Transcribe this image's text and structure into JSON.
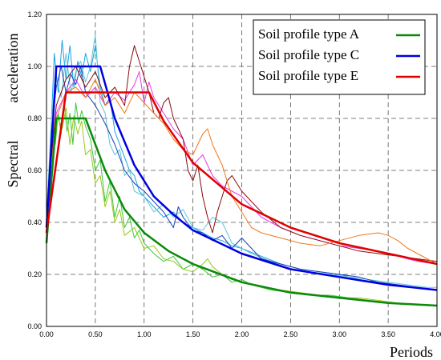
{
  "chart_data": {
    "type": "line",
    "title": "",
    "xlabel": "Periods",
    "ylabel_lines": [
      "Spectral",
      "acceleration"
    ],
    "xlim": [
      0,
      4
    ],
    "ylim": [
      0,
      1.2
    ],
    "grid": true,
    "legend_position": "top-right",
    "x_ticks": [
      "0.00",
      "0.50",
      "1.00",
      "1.50",
      "2.00",
      "2.50",
      "3.00",
      "3.50",
      "4.00"
    ],
    "y_ticks": [
      "0.00",
      "0.20",
      "0.40",
      "0.60",
      "0.80",
      "1.00",
      "1.20"
    ],
    "series": [
      {
        "name": "Soil profile type A",
        "color": "#0a8a0a",
        "width": 2.5,
        "x": [
          0,
          0.1,
          0.4,
          0.6,
          0.8,
          1.0,
          1.25,
          1.5,
          2.0,
          2.5,
          3.0,
          3.5,
          4.0
        ],
        "y": [
          0.32,
          0.8,
          0.8,
          0.6,
          0.45,
          0.36,
          0.29,
          0.24,
          0.17,
          0.13,
          0.11,
          0.09,
          0.08
        ]
      },
      {
        "name": "Soil profile type C",
        "color": "#0000e0",
        "width": 2.5,
        "x": [
          0,
          0.1,
          0.55,
          0.7,
          0.9,
          1.1,
          1.3,
          1.5,
          2.0,
          2.5,
          3.0,
          3.5,
          4.0
        ],
        "y": [
          0.38,
          1.0,
          1.0,
          0.8,
          0.62,
          0.5,
          0.43,
          0.37,
          0.28,
          0.22,
          0.19,
          0.16,
          0.14
        ]
      },
      {
        "name": "Soil profile type E",
        "color": "#e00000",
        "width": 2.5,
        "x": [
          0,
          0.2,
          1.05,
          1.2,
          1.5,
          2.0,
          2.5,
          3.0,
          3.5,
          4.0
        ],
        "y": [
          0.36,
          0.9,
          0.9,
          0.79,
          0.63,
          0.47,
          0.38,
          0.32,
          0.28,
          0.24
        ]
      }
    ],
    "records": [
      {
        "color": "#3cc83c",
        "x": [
          0,
          0.03,
          0.06,
          0.09,
          0.12,
          0.15,
          0.18,
          0.21,
          0.24,
          0.27,
          0.3,
          0.33,
          0.36,
          0.4,
          0.45,
          0.5,
          0.55,
          0.6,
          0.65,
          0.7,
          0.75,
          0.8,
          0.85,
          0.9,
          0.95,
          1.0,
          1.1,
          1.2,
          1.3,
          1.4,
          1.5,
          1.6,
          1.7,
          1.8,
          1.9,
          2.0,
          2.1,
          2.2,
          2.3,
          2.5,
          2.7,
          2.9,
          3.1,
          3.3,
          3.5,
          3.7,
          3.9,
          4.0
        ],
        "y": [
          0.35,
          0.55,
          0.78,
          0.7,
          0.82,
          0.74,
          0.87,
          0.75,
          0.82,
          0.7,
          0.86,
          0.78,
          0.83,
          0.77,
          0.72,
          0.6,
          0.64,
          0.48,
          0.56,
          0.42,
          0.5,
          0.38,
          0.42,
          0.34,
          0.37,
          0.32,
          0.28,
          0.25,
          0.27,
          0.22,
          0.24,
          0.22,
          0.19,
          0.2,
          0.17,
          0.18,
          0.16,
          0.15,
          0.14,
          0.13,
          0.12,
          0.12,
          0.11,
          0.1,
          0.09,
          0.085,
          0.08,
          0.08
        ]
      },
      {
        "color": "#98c818",
        "x": [
          0,
          0.04,
          0.08,
          0.12,
          0.16,
          0.2,
          0.24,
          0.28,
          0.32,
          0.36,
          0.4,
          0.45,
          0.5,
          0.55,
          0.6,
          0.65,
          0.7,
          0.75,
          0.8,
          0.9,
          1.0,
          1.1,
          1.2,
          1.3,
          1.4,
          1.5,
          1.6,
          1.65,
          1.7,
          1.8,
          1.9,
          2.0,
          2.2,
          2.4,
          2.6,
          2.8,
          3.0,
          3.2,
          3.4,
          3.6,
          3.8,
          4.0
        ],
        "y": [
          0.38,
          0.62,
          0.72,
          0.8,
          0.76,
          0.84,
          0.7,
          0.81,
          0.74,
          0.79,
          0.66,
          0.68,
          0.55,
          0.58,
          0.46,
          0.52,
          0.4,
          0.45,
          0.35,
          0.38,
          0.3,
          0.31,
          0.26,
          0.25,
          0.22,
          0.21,
          0.24,
          0.26,
          0.23,
          0.2,
          0.18,
          0.17,
          0.15,
          0.14,
          0.13,
          0.12,
          0.11,
          0.11,
          0.1,
          0.09,
          0.085,
          0.08
        ]
      },
      {
        "color": "#18a0e8",
        "x": [
          0,
          0.04,
          0.08,
          0.12,
          0.16,
          0.2,
          0.24,
          0.28,
          0.32,
          0.36,
          0.4,
          0.45,
          0.5,
          0.55,
          0.6,
          0.65,
          0.7,
          0.75,
          0.8,
          0.85,
          0.9,
          0.95,
          1.0,
          1.1,
          1.2,
          1.3,
          1.4,
          1.5,
          1.6,
          1.7,
          1.8,
          1.9,
          2.0,
          2.2,
          2.4,
          2.6,
          2.8,
          3.0,
          3.2,
          3.4,
          3.6,
          3.8,
          4.0
        ],
        "y": [
          0.4,
          0.7,
          1.05,
          0.9,
          1.1,
          0.95,
          1.08,
          0.92,
          1.02,
          0.96,
          1.05,
          0.98,
          1.08,
          0.92,
          0.85,
          0.88,
          0.75,
          0.7,
          0.65,
          0.6,
          0.58,
          0.52,
          0.5,
          0.46,
          0.42,
          0.44,
          0.4,
          0.38,
          0.36,
          0.34,
          0.33,
          0.31,
          0.3,
          0.27,
          0.24,
          0.22,
          0.21,
          0.2,
          0.18,
          0.17,
          0.16,
          0.15,
          0.14
        ]
      },
      {
        "color": "#60c8d8",
        "x": [
          0,
          0.05,
          0.1,
          0.15,
          0.2,
          0.25,
          0.3,
          0.35,
          0.4,
          0.45,
          0.5,
          0.55,
          0.6,
          0.65,
          0.7,
          0.75,
          0.8,
          0.85,
          0.9,
          1.0,
          1.1,
          1.2,
          1.3,
          1.4,
          1.5,
          1.6,
          1.7,
          1.8,
          1.9,
          2.0,
          2.1,
          2.3,
          2.5,
          2.7,
          2.9,
          3.1,
          3.3,
          3.5,
          3.7,
          3.9,
          4.0
        ],
        "y": [
          0.42,
          0.8,
          0.95,
          0.88,
          1.05,
          0.9,
          0.98,
          1.02,
          0.94,
          1.0,
          1.12,
          0.86,
          0.82,
          0.7,
          0.66,
          0.68,
          0.58,
          0.6,
          0.52,
          0.5,
          0.44,
          0.47,
          0.42,
          0.45,
          0.38,
          0.37,
          0.42,
          0.4,
          0.32,
          0.3,
          0.28,
          0.25,
          0.22,
          0.21,
          0.2,
          0.19,
          0.18,
          0.17,
          0.16,
          0.15,
          0.15
        ]
      },
      {
        "color": "#1840b8",
        "x": [
          0,
          0.05,
          0.1,
          0.15,
          0.2,
          0.25,
          0.3,
          0.35,
          0.4,
          0.5,
          0.6,
          0.7,
          0.8,
          0.9,
          1.0,
          1.1,
          1.2,
          1.3,
          1.35,
          1.4,
          1.5,
          1.6,
          1.7,
          1.8,
          1.9,
          2.0,
          2.1,
          2.2,
          2.4,
          2.6,
          2.8,
          3.0,
          3.2,
          3.4,
          3.6,
          3.8,
          4.0
        ],
        "y": [
          0.4,
          0.75,
          0.92,
          1.0,
          0.9,
          0.97,
          0.93,
          1.0,
          0.9,
          0.85,
          0.78,
          0.7,
          0.6,
          0.55,
          0.52,
          0.48,
          0.44,
          0.38,
          0.46,
          0.42,
          0.37,
          0.36,
          0.33,
          0.35,
          0.3,
          0.34,
          0.3,
          0.26,
          0.24,
          0.22,
          0.21,
          0.2,
          0.19,
          0.17,
          0.16,
          0.15,
          0.14
        ]
      },
      {
        "color": "#e838e8",
        "x": [
          0,
          0.05,
          0.1,
          0.2,
          0.3,
          0.4,
          0.5,
          0.6,
          0.7,
          0.8,
          0.9,
          0.95,
          1.0,
          1.05,
          1.1,
          1.2,
          1.3,
          1.4,
          1.5,
          1.6,
          1.7,
          1.8,
          1.9,
          2.0,
          2.1,
          2.2,
          2.4,
          2.6,
          2.8,
          3.0,
          3.2,
          3.4,
          3.6,
          3.8,
          4.0
        ],
        "y": [
          0.38,
          0.6,
          0.82,
          0.9,
          0.95,
          0.88,
          0.92,
          0.85,
          0.9,
          0.87,
          0.93,
          0.98,
          0.86,
          0.94,
          0.88,
          0.82,
          0.76,
          0.72,
          0.62,
          0.66,
          0.58,
          0.54,
          0.52,
          0.5,
          0.46,
          0.42,
          0.38,
          0.35,
          0.33,
          0.31,
          0.3,
          0.29,
          0.27,
          0.25,
          0.24
        ]
      },
      {
        "color": "#8b0a0a",
        "x": [
          0,
          0.05,
          0.1,
          0.2,
          0.3,
          0.4,
          0.5,
          0.6,
          0.7,
          0.8,
          0.85,
          0.9,
          0.95,
          1.0,
          1.05,
          1.1,
          1.15,
          1.2,
          1.25,
          1.3,
          1.35,
          1.4,
          1.45,
          1.5,
          1.55,
          1.6,
          1.65,
          1.7,
          1.75,
          1.8,
          1.85,
          1.9,
          2.0,
          2.2,
          2.4,
          2.6,
          2.8,
          3.0,
          3.2,
          3.4,
          3.6,
          3.8,
          4.0
        ],
        "y": [
          0.4,
          0.65,
          0.85,
          0.95,
          1.0,
          0.92,
          0.98,
          0.88,
          0.92,
          0.85,
          1.0,
          1.08,
          1.02,
          0.96,
          0.9,
          0.82,
          0.8,
          0.86,
          0.88,
          0.8,
          0.76,
          0.72,
          0.6,
          0.56,
          0.62,
          0.5,
          0.42,
          0.36,
          0.44,
          0.5,
          0.56,
          0.58,
          0.52,
          0.44,
          0.38,
          0.35,
          0.33,
          0.31,
          0.29,
          0.28,
          0.27,
          0.26,
          0.25
        ]
      },
      {
        "color": "#f07818",
        "x": [
          0,
          0.05,
          0.1,
          0.2,
          0.3,
          0.4,
          0.5,
          0.6,
          0.7,
          0.8,
          0.9,
          1.0,
          1.1,
          1.2,
          1.3,
          1.4,
          1.5,
          1.6,
          1.65,
          1.7,
          1.8,
          1.9,
          2.0,
          2.1,
          2.2,
          2.4,
          2.6,
          2.8,
          3.0,
          3.2,
          3.4,
          3.5,
          3.6,
          3.7,
          3.8,
          3.9,
          4.0
        ],
        "y": [
          0.38,
          0.58,
          0.8,
          0.9,
          0.92,
          0.88,
          0.95,
          0.85,
          0.88,
          0.82,
          0.9,
          0.86,
          0.82,
          0.78,
          0.72,
          0.68,
          0.66,
          0.74,
          0.76,
          0.7,
          0.62,
          0.5,
          0.44,
          0.38,
          0.36,
          0.34,
          0.32,
          0.31,
          0.33,
          0.35,
          0.36,
          0.35,
          0.33,
          0.3,
          0.28,
          0.26,
          0.24
        ]
      }
    ]
  }
}
